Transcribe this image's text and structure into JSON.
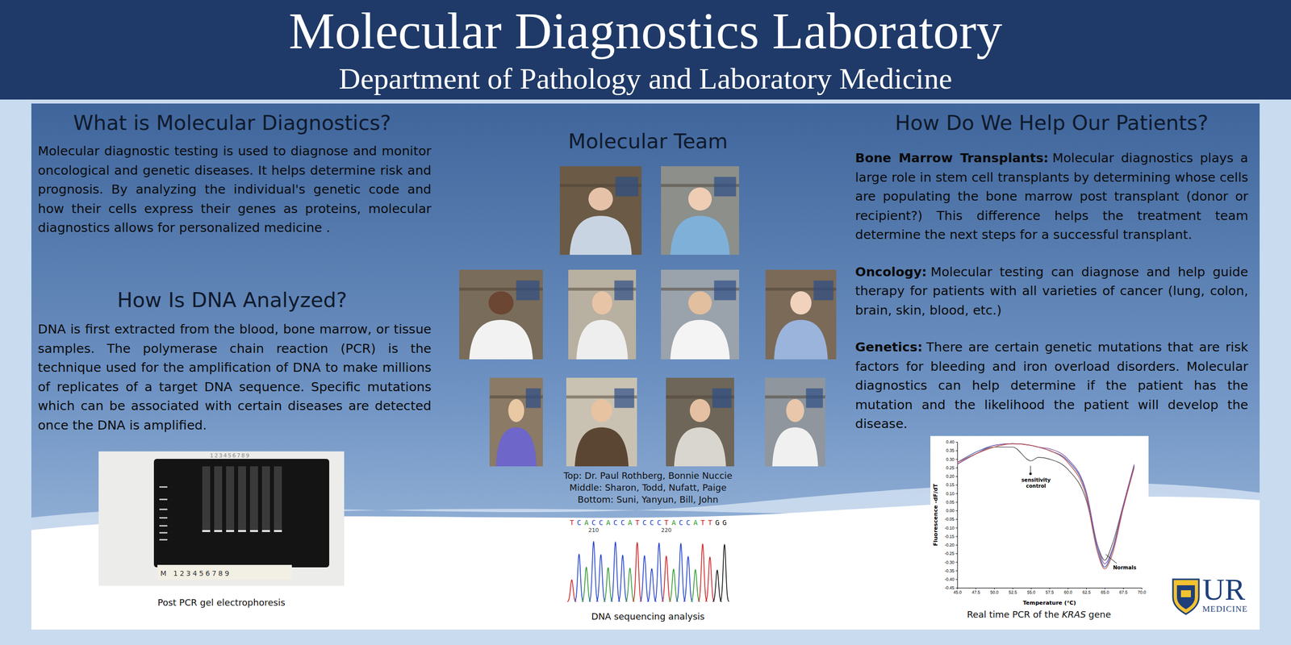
{
  "header": {
    "title": "Molecular Diagnostics Laboratory",
    "subtitle": "Department of Pathology and Laboratory Medicine"
  },
  "left": {
    "sections": [
      {
        "heading": "What is Molecular Diagnostics?",
        "text": "Molecular diagnostic testing is used to diagnose and monitor oncological and genetic diseases. It helps determine risk and prognosis. By analyzing the individual's genetic code and how their cells express their genes as proteins, molecular diagnostics allows for personalized medicine ."
      },
      {
        "heading": "How Is DNA Analyzed?",
        "text": "DNA is first extracted from the blood, bone marrow, or tissue samples. The polymerase chain reaction (PCR) is the technique used for the amplification of DNA to make millions of replicates of a target DNA sequence. Specific mutations which can be associated with certain diseases are detected once the DNA is amplified."
      }
    ]
  },
  "gel": {
    "lanes": "123456789",
    "marker": "M",
    "caption": "Post PCR gel electrophoresis"
  },
  "team": {
    "heading": "Molecular Team",
    "caption": [
      "Top: Dr. Paul Rothberg, Bonnie Nuccie",
      "Middle: Sharon, Todd, Nufatt, Paige",
      "Bottom: Suni, Yanyun, Bill, John"
    ]
  },
  "sequencing": {
    "bases": "TCACCACCATCCCTACCATTGG",
    "positions": [
      210,
      220
    ],
    "caption": "DNA sequencing analysis"
  },
  "right": {
    "heading": "How Do We Help Our Patients?",
    "items": [
      {
        "label": "Bone Marrow Transplants:",
        "text": "Molecular diagnostics plays a large role in stem cell transplants by determining whose cells are populating the bone marrow post transplant (donor or recipient?) This difference helps the treatment team determine the next steps for a successful transplant."
      },
      {
        "label": "Oncology:",
        "text": "Molecular testing can diagnose and help guide therapy for patients with all varieties of cancer (lung, colon, brain, skin, blood, etc.)"
      },
      {
        "label": "Genetics:",
        "text": "There are certain genetic mutations that are risk factors for bleeding and iron overload disorders. Molecular diagnostics can help determine if the patient has the mutation and the likelihood the patient will develop the disease."
      }
    ]
  },
  "chart_data": {
    "type": "line",
    "x_label": "Temperature (°C)",
    "y_label": "Fluorescence -dF/dT",
    "annotations": [
      "sensitivity control",
      "Normals"
    ],
    "x": [
      45,
      47.5,
      50,
      52.5,
      55,
      56,
      57.5,
      60,
      62.5,
      64,
      65,
      66,
      67.5,
      69
    ],
    "series": [
      {
        "color": "#555555",
        "values": [
          0.27,
          0.33,
          0.37,
          0.37,
          0.29,
          0.31,
          0.3,
          0.24,
          0.06,
          -0.2,
          -0.29,
          -0.2,
          0.03,
          0.26
        ]
      },
      {
        "color": "#3b5bab",
        "values": [
          0.28,
          0.34,
          0.38,
          0.39,
          0.38,
          0.37,
          0.35,
          0.29,
          0.1,
          -0.22,
          -0.33,
          -0.24,
          0.02,
          0.26
        ]
      },
      {
        "color": "#8a5aa8",
        "values": [
          0.27,
          0.33,
          0.38,
          0.39,
          0.38,
          0.37,
          0.36,
          0.3,
          0.11,
          -0.2,
          -0.31,
          -0.23,
          0.03,
          0.27
        ]
      },
      {
        "color": "#c0504d",
        "values": [
          0.28,
          0.33,
          0.37,
          0.39,
          0.38,
          0.37,
          0.35,
          0.28,
          0.08,
          -0.24,
          -0.34,
          -0.26,
          0.01,
          0.25
        ]
      }
    ],
    "xlim": [
      45,
      70
    ],
    "ylim": [
      -0.45,
      0.4
    ],
    "xticks": [
      {
        "value": 45,
        "label": "45.0"
      },
      47.5,
      {
        "value": 50,
        "label": "50.0"
      },
      52.5,
      {
        "value": 55,
        "label": "55.0"
      },
      57.5,
      {
        "value": 60,
        "label": "60.0"
      },
      62.5,
      {
        "value": 65,
        "label": "65.0"
      },
      67.5,
      {
        "value": 70,
        "label": "70.0"
      }
    ],
    "yticks": [
      -0.45,
      {
        "value": -0.4,
        "label": "-0.40"
      },
      -0.35,
      {
        "value": -0.3,
        "label": "-0.30"
      },
      -0.25,
      {
        "value": -0.2,
        "label": "-0.20"
      },
      -0.15,
      {
        "value": -0.1,
        "label": "-0.10"
      },
      -0.05,
      {
        "value": 0,
        "label": "0.00"
      },
      0.05,
      {
        "value": 0.1,
        "label": "0.10"
      },
      0.15,
      {
        "value": 0.2,
        "label": "0.20"
      },
      0.25,
      {
        "value": 0.3,
        "label": "0.30"
      },
      0.35,
      {
        "value": 0.4,
        "label": "0.40"
      }
    ],
    "caption": {
      "before": "Real time PCR of the",
      "italic": "KRAS",
      "after": "gene"
    }
  },
  "logo": {
    "name": "UR",
    "subtitle": "MEDICINE"
  }
}
